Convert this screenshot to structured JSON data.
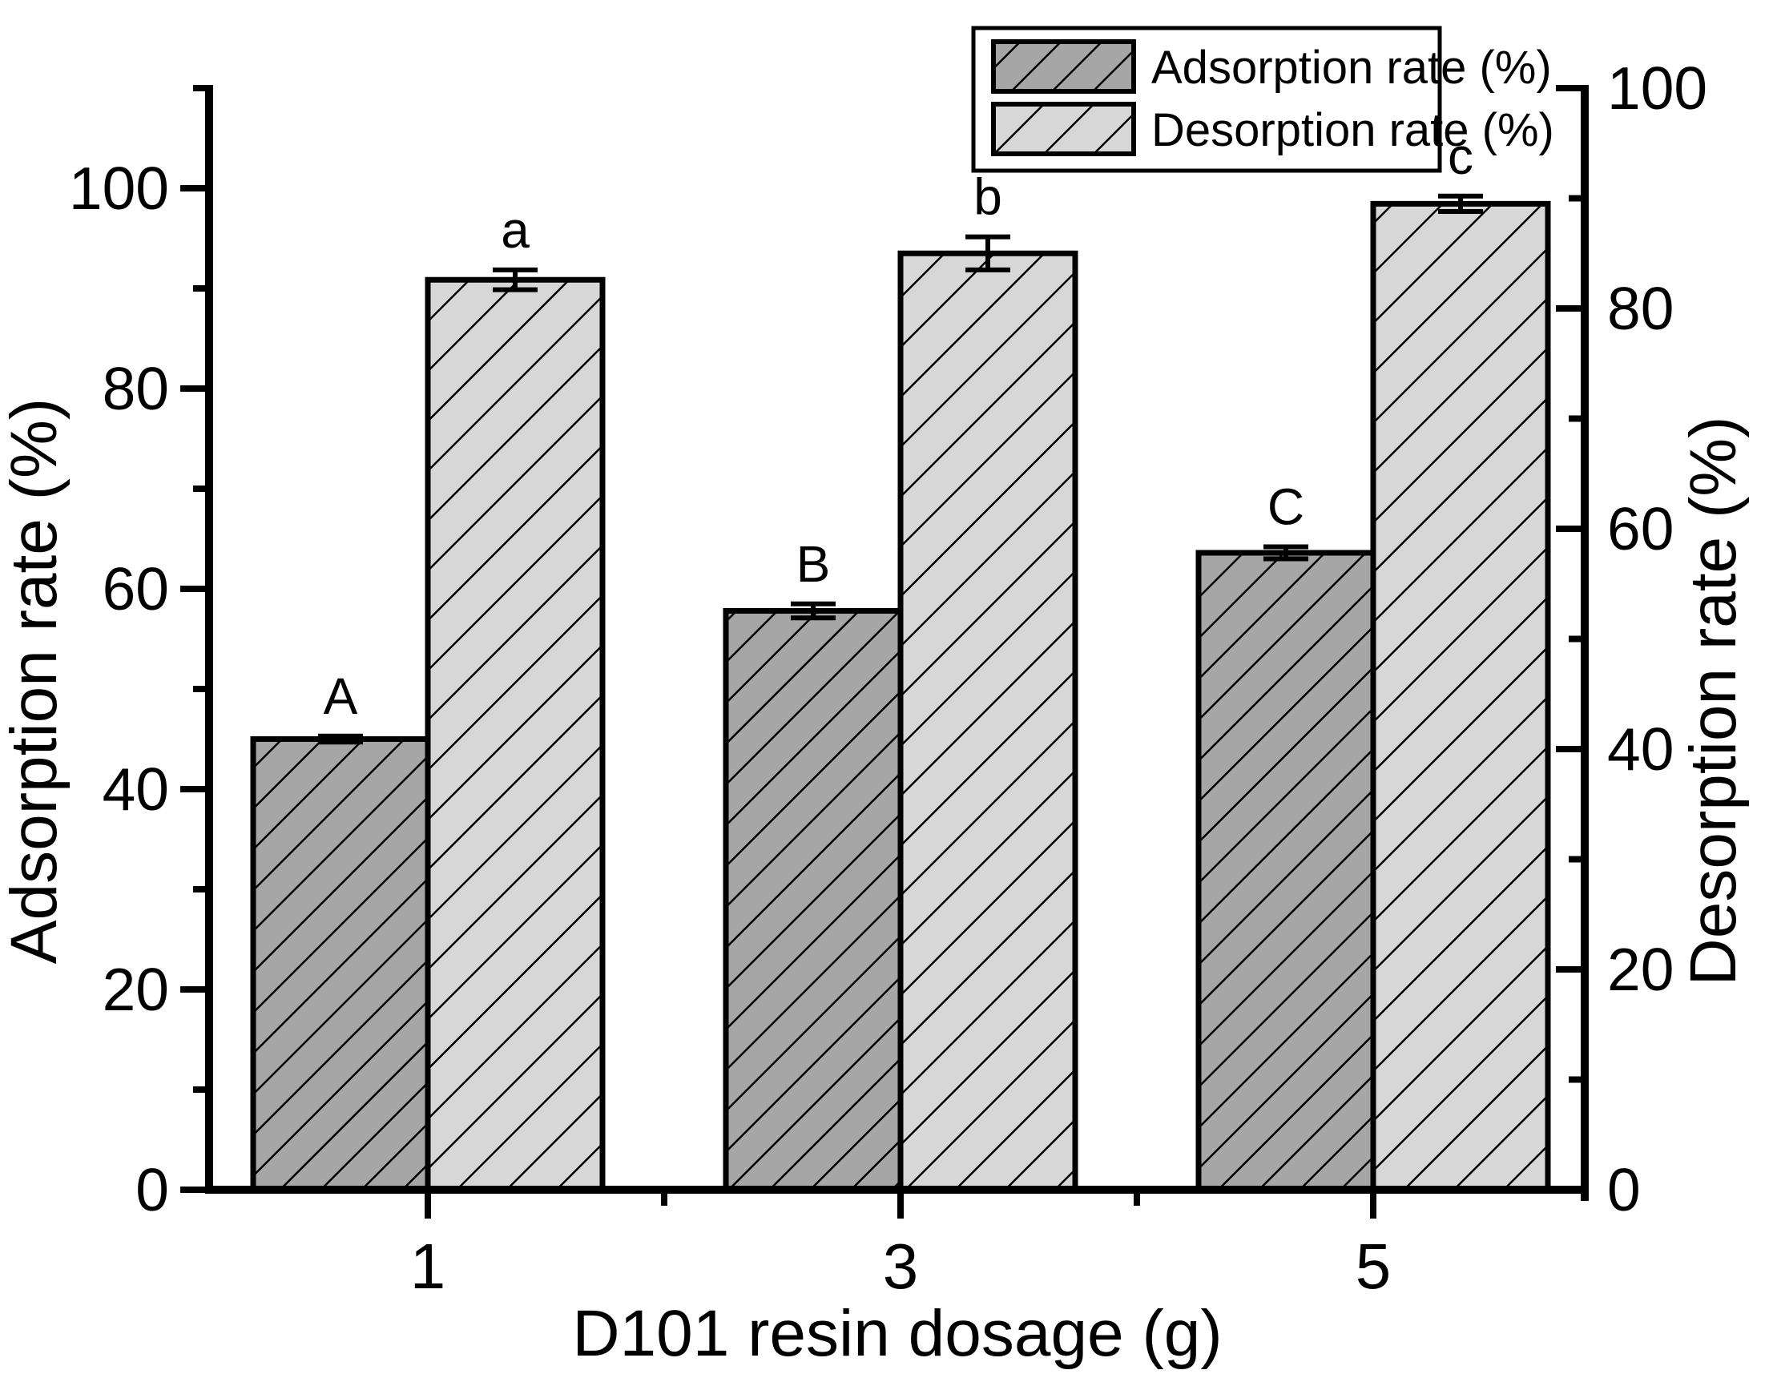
{
  "figure": {
    "background": "#ffffff",
    "foreground": "#000000"
  },
  "chart_data": {
    "type": "bar",
    "title": "",
    "xlabel": "D101 resin dosage (g)",
    "ylabel_left": "Adsorption rate (%)",
    "ylabel_right": "Desorption rate (%)",
    "categories": [
      "1",
      "3",
      "5"
    ],
    "x_minor_ticks": [
      "2",
      "4"
    ],
    "ylim_left": [
      0,
      110
    ],
    "ylim_right": [
      0,
      100
    ],
    "y_major_ticks_left": [
      "0",
      "20",
      "40",
      "60",
      "80",
      "100"
    ],
    "y_minor_step": 10,
    "y_major_step": 20,
    "y_major_ticks_right": [
      "0",
      "20",
      "40",
      "60",
      "80",
      "100"
    ],
    "grid": "off",
    "legend_position": "top-right-inside",
    "series": [
      {
        "name": "Adsorption rate (%)",
        "axis": "left",
        "values": [
          45.0,
          57.8,
          63.6
        ],
        "errors": [
          0.3,
          0.7,
          0.6
        ],
        "letter_labels": [
          "A",
          "B",
          "C"
        ],
        "fill_color": "#a6a6a6",
        "hatch": "diagonal-forward",
        "hatch_spacing": 36,
        "hatch_line_width": 5
      },
      {
        "name": "Desorption rate (%)",
        "axis": "right",
        "values": [
          82.6,
          85.0,
          89.5
        ],
        "errors": [
          0.9,
          1.5,
          0.7
        ],
        "letter_labels": [
          "a",
          "b",
          "c"
        ],
        "fill_color": "#d7d7d7",
        "hatch": "diagonal-forward",
        "hatch_spacing": 44,
        "hatch_line_width": 5
      }
    ]
  }
}
